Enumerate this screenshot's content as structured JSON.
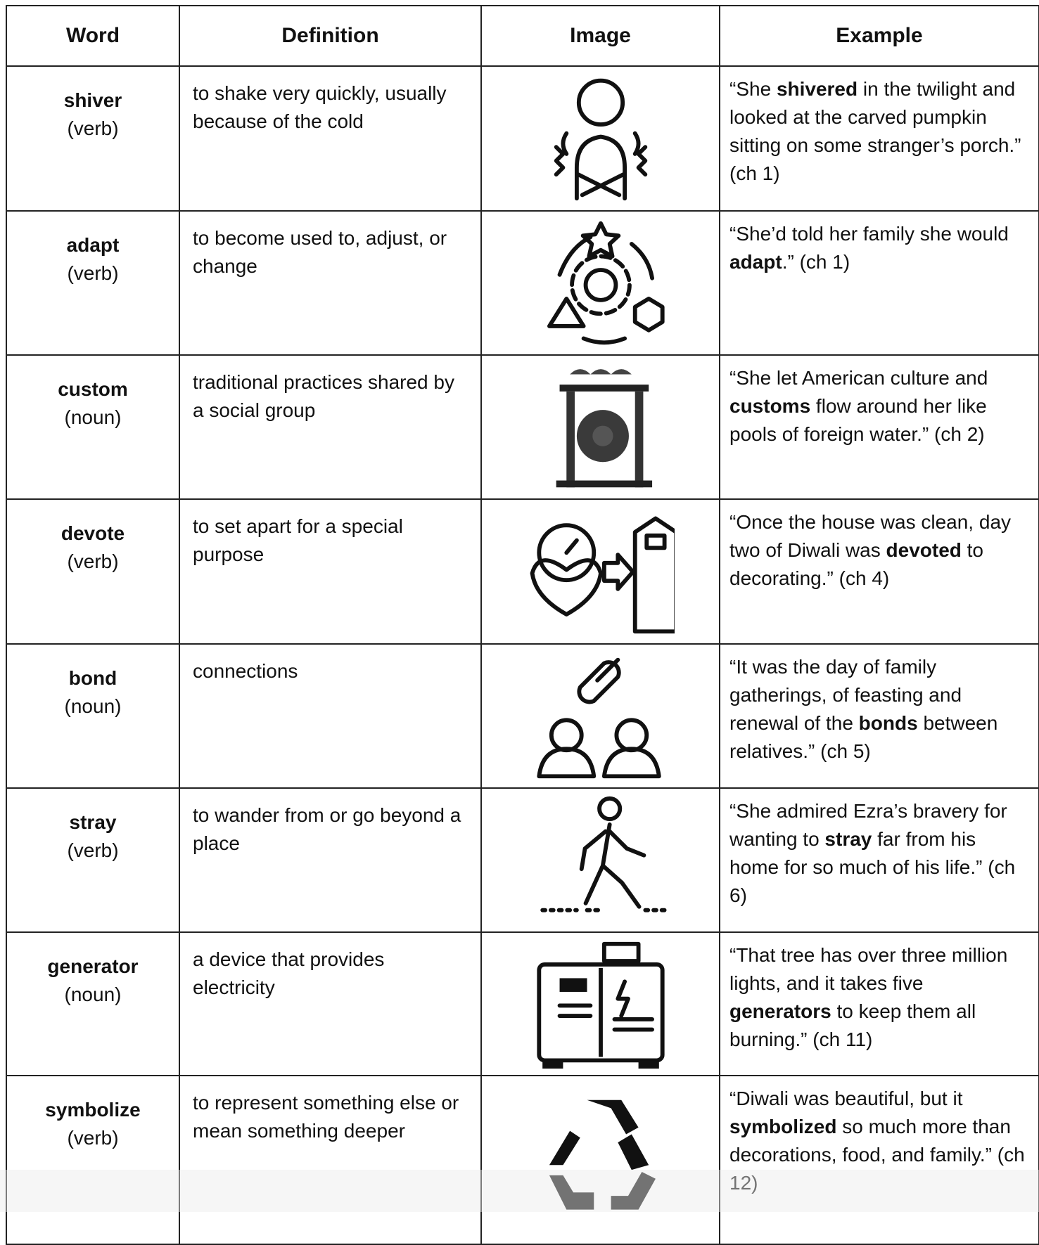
{
  "header": [
    "Word",
    "Definition",
    "Image",
    "Example"
  ],
  "rows": [
    {
      "word": "shiver",
      "pos": "(verb)",
      "definition": "to shake very quickly, usually because of the cold",
      "example": [
        "“She ",
        "shivered",
        " in the twilight and looked at the carved pumpkin sitting on some stranger’s porch.” (ch 1)"
      ]
    },
    {
      "word": "adapt",
      "pos": "(verb)",
      "definition": "to become used to, adjust, or change",
      "example": [
        "“She’d told her family she would ",
        "adapt",
        ".” (ch 1)"
      ]
    },
    {
      "word": "custom",
      "pos": "(noun)",
      "definition": "traditional practices shared by a social group",
      "example": [
        "“She let American culture and ",
        "customs",
        " flow around her like pools of foreign water.” (ch 2)"
      ]
    },
    {
      "word": "devote",
      "pos": "(verb)",
      "definition": "to set apart for a special purpose",
      "example": [
        "“Once the house was clean, day two of Diwali was ",
        "devoted",
        " to decorating.” (ch 4)"
      ]
    },
    {
      "word": "bond",
      "pos": "(noun)",
      "definition": "connections",
      "example": [
        "“It was the day of family gatherings, of feasting and renewal of the ",
        "bonds",
        " between relatives.” (ch 5)"
      ]
    },
    {
      "word": "stray",
      "pos": "(verb)",
      "definition": "to wander from or go beyond a place",
      "example": [
        "“She admired Ezra’s bravery for wanting to ",
        "stray",
        " far from his home for so much of his life.” (ch 6)"
      ]
    },
    {
      "word": "generator",
      "pos": "(noun)",
      "definition": "a device that provides electricity",
      "example": [
        "“That tree has over three million lights, and it takes five ",
        "generators",
        " to keep them all burning.” (ch 11)"
      ]
    },
    {
      "word": "symbolize",
      "pos": "(verb)",
      "definition": "to represent something else or mean something deeper",
      "example": [
        "“Diwali was beautiful, but it ",
        "symbolized",
        " so much more than decorations, food, and family.” (ch 12)"
      ]
    }
  ]
}
